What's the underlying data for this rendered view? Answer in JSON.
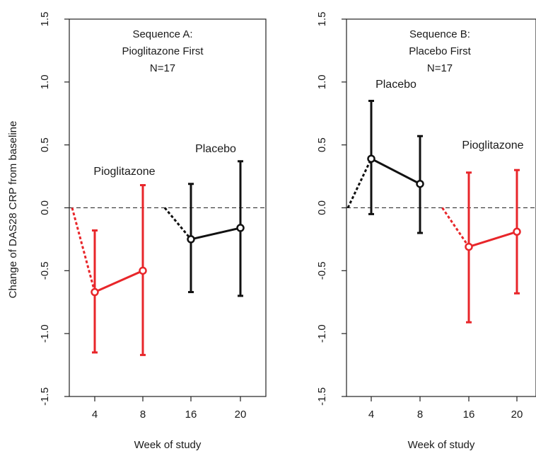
{
  "shared": {
    "ylabel": "Change of DAS28 CRP from baseline",
    "xlabel": "Week of study"
  },
  "chart_data": [
    {
      "type": "line",
      "title": [
        "Sequence A:",
        "Pioglitazone First",
        "N=17"
      ],
      "xlabel": "Week of study",
      "ylabel": "Change of DAS28 CRP from baseline",
      "ylim": [
        -1.5,
        1.5
      ],
      "yticks": [
        "-1.5",
        "-1.0",
        "-0.5",
        "0.0",
        "0.5",
        "1.0",
        "1.5"
      ],
      "yticks_values": [
        -1.5,
        -1.0,
        -0.5,
        0.0,
        0.5,
        1.0,
        1.5
      ],
      "categories": [
        "4",
        "8",
        "16",
        "20"
      ],
      "reference_line": 0,
      "grid": false,
      "series": [
        {
          "name": "Pioglitazone",
          "color": "#e8262a",
          "points": [
            {
              "week": "4",
              "mean": -0.67,
              "lower": -1.15,
              "upper": -0.18
            },
            {
              "week": "8",
              "mean": -0.5,
              "lower": -1.17,
              "upper": 0.18
            }
          ],
          "start_mean": 0.0
        },
        {
          "name": "Placebo",
          "color": "#111111",
          "points": [
            {
              "week": "16",
              "mean": -0.25,
              "lower": -0.67,
              "upper": 0.19
            },
            {
              "week": "20",
              "mean": -0.16,
              "lower": -0.7,
              "upper": 0.37
            }
          ],
          "start_mean": 0.0
        }
      ]
    },
    {
      "type": "line",
      "title": [
        "Sequence B:",
        "Placebo First",
        "N=17"
      ],
      "xlabel": "Week of study",
      "ylabel": "",
      "ylim": [
        -1.5,
        1.5
      ],
      "yticks": [
        "-1.5",
        "-1.0",
        "-0.5",
        "0.0",
        "0.5",
        "1.0",
        "1.5"
      ],
      "yticks_values": [
        -1.5,
        -1.0,
        -0.5,
        0.0,
        0.5,
        1.0,
        1.5
      ],
      "categories": [
        "4",
        "8",
        "16",
        "20"
      ],
      "reference_line": 0,
      "grid": false,
      "series": [
        {
          "name": "Placebo",
          "color": "#111111",
          "points": [
            {
              "week": "4",
              "mean": 0.39,
              "lower": -0.05,
              "upper": 0.85
            },
            {
              "week": "8",
              "mean": 0.19,
              "lower": -0.2,
              "upper": 0.57
            }
          ],
          "start_mean": 0.0
        },
        {
          "name": "Pioglitazone",
          "color": "#e8262a",
          "points": [
            {
              "week": "16",
              "mean": -0.31,
              "lower": -0.91,
              "upper": 0.28
            },
            {
              "week": "20",
              "mean": -0.19,
              "lower": -0.68,
              "upper": 0.3
            }
          ],
          "start_mean": 0.0
        }
      ]
    }
  ]
}
